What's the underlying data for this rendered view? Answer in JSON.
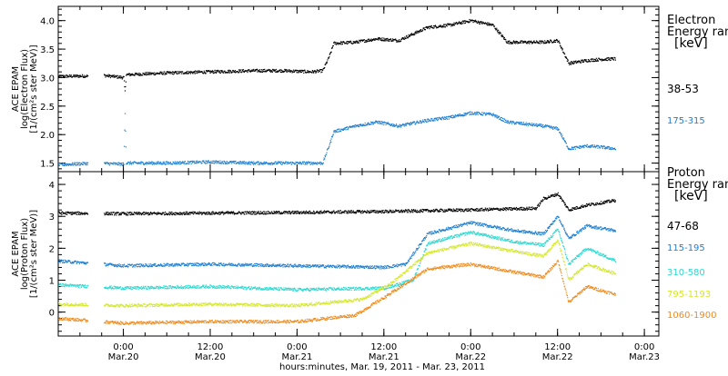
{
  "chart_data": [
    {
      "type": "scatter",
      "ylabel_lines": [
        "ACE EPAM",
        "log(Electron Flux)",
        "[1/(cm²s ster MeV)]"
      ],
      "xlim": [
        "2011-03-19T15:00",
        "2011-03-23T02:00"
      ],
      "ylim": [
        1.35,
        4.25
      ],
      "yticks": [
        1.5,
        2.0,
        2.5,
        3.0,
        3.5,
        4.0
      ],
      "ytick_labels": [
        "1.5",
        "2.0",
        "2.5",
        "3.0",
        "3.5",
        "4.0"
      ],
      "legend_title_lines": [
        "Electron",
        "Energy ranges",
        "[keV]"
      ],
      "grid": false,
      "legend_position": "right",
      "series": [
        {
          "name": "38-53",
          "color": "#000000",
          "points": [
            [
              "2011-03-19T15:00",
              3.02
            ],
            [
              "2011-03-19T20:00",
              3.03
            ],
            [
              "2011-03-19T21:00",
              3.04
            ],
            [
              "2011-03-20T00:00",
              3.0
            ],
            [
              "2011-03-20T00:10",
              2.75
            ],
            [
              "2011-03-20T00:20",
              3.05
            ],
            [
              "2011-03-20T06:00",
              3.08
            ],
            [
              "2011-03-20T12:00",
              3.1
            ],
            [
              "2011-03-20T18:00",
              3.12
            ],
            [
              "2011-03-20T22:00",
              3.12
            ],
            [
              "2011-03-21T02:00",
              3.1
            ],
            [
              "2011-03-21T03:30",
              3.12
            ],
            [
              "2011-03-21T04:30",
              3.4
            ],
            [
              "2011-03-21T05:00",
              3.6
            ],
            [
              "2011-03-21T08:00",
              3.62
            ],
            [
              "2011-03-21T11:00",
              3.68
            ],
            [
              "2011-03-21T14:00",
              3.65
            ],
            [
              "2011-03-21T18:00",
              3.88
            ],
            [
              "2011-03-21T21:00",
              3.92
            ],
            [
              "2011-03-22T00:00",
              4.0
            ],
            [
              "2011-03-22T03:00",
              3.92
            ],
            [
              "2011-03-22T05:00",
              3.62
            ],
            [
              "2011-03-22T10:00",
              3.62
            ],
            [
              "2011-03-22T12:00",
              3.65
            ],
            [
              "2011-03-22T13:30",
              3.25
            ],
            [
              "2011-03-22T16:00",
              3.3
            ],
            [
              "2011-03-22T18:00",
              3.32
            ],
            [
              "2011-03-22T20:00",
              3.33
            ]
          ]
        },
        {
          "name": "175-315",
          "color": "#1e7fd0",
          "points": [
            [
              "2011-03-19T15:00",
              1.47
            ],
            [
              "2011-03-19T20:00",
              1.5
            ],
            [
              "2011-03-20T00:00",
              1.48
            ],
            [
              "2011-03-20T00:10",
              2.38
            ],
            [
              "2011-03-20T00:20",
              1.5
            ],
            [
              "2011-03-20T06:00",
              1.5
            ],
            [
              "2011-03-20T12:00",
              1.52
            ],
            [
              "2011-03-20T18:00",
              1.5
            ],
            [
              "2011-03-20T22:00",
              1.5
            ],
            [
              "2011-03-21T02:00",
              1.5
            ],
            [
              "2011-03-21T03:30",
              1.5
            ],
            [
              "2011-03-21T04:30",
              1.85
            ],
            [
              "2011-03-21T05:00",
              2.05
            ],
            [
              "2011-03-21T08:00",
              2.15
            ],
            [
              "2011-03-21T11:00",
              2.22
            ],
            [
              "2011-03-21T14:00",
              2.15
            ],
            [
              "2011-03-21T18:00",
              2.25
            ],
            [
              "2011-03-21T21:00",
              2.3
            ],
            [
              "2011-03-22T00:00",
              2.38
            ],
            [
              "2011-03-22T03:00",
              2.35
            ],
            [
              "2011-03-22T05:00",
              2.22
            ],
            [
              "2011-03-22T10:00",
              2.15
            ],
            [
              "2011-03-22T12:00",
              2.1
            ],
            [
              "2011-03-22T13:30",
              1.75
            ],
            [
              "2011-03-22T16:00",
              1.8
            ],
            [
              "2011-03-22T18:00",
              1.78
            ],
            [
              "2011-03-22T20:00",
              1.75
            ]
          ]
        }
      ]
    },
    {
      "type": "scatter",
      "ylabel_lines": [
        "ACE EPAM",
        "log(Proton Flux)",
        "[1/(cm²s ster MeV)]"
      ],
      "xlim": [
        "2011-03-19T15:00",
        "2011-03-23T02:00"
      ],
      "ylim": [
        -0.75,
        4.4
      ],
      "yticks": [
        0,
        1,
        2,
        3,
        4
      ],
      "ytick_labels": [
        "0",
        "1",
        "2",
        "3",
        "4"
      ],
      "legend_title_lines": [
        "Proton",
        "Energy ranges",
        "[keV]"
      ],
      "xtick_times": [
        "2011-03-20T00:00",
        "2011-03-20T12:00",
        "2011-03-21T00:00",
        "2011-03-21T12:00",
        "2011-03-22T00:00",
        "2011-03-22T12:00",
        "2011-03-23T00:00"
      ],
      "xtick_labels": [
        [
          "0:00",
          "Mar.20"
        ],
        [
          "12:00",
          "Mar.20"
        ],
        [
          "0:00",
          "Mar.21"
        ],
        [
          "12:00",
          "Mar.21"
        ],
        [
          "0:00",
          "Mar.22"
        ],
        [
          "12:00",
          "Mar.22"
        ],
        [
          "0:00",
          "Mar.23"
        ]
      ],
      "xlabel": "hours:minutes, Mar. 19, 2011 - Mar. 23, 2011",
      "grid": false,
      "legend_position": "right",
      "series": [
        {
          "name": "47-68",
          "color": "#000000",
          "points": [
            [
              "2011-03-19T15:00",
              3.1
            ],
            [
              "2011-03-20T00:00",
              3.08
            ],
            [
              "2011-03-20T12:00",
              3.1
            ],
            [
              "2011-03-21T00:00",
              3.12
            ],
            [
              "2011-03-21T12:00",
              3.15
            ],
            [
              "2011-03-22T00:00",
              3.2
            ],
            [
              "2011-03-22T09:00",
              3.25
            ],
            [
              "2011-03-22T10:00",
              3.55
            ],
            [
              "2011-03-22T12:00",
              3.7
            ],
            [
              "2011-03-22T13:30",
              3.2
            ],
            [
              "2011-03-22T16:00",
              3.35
            ],
            [
              "2011-03-22T20:00",
              3.5
            ]
          ]
        },
        {
          "name": "115-195",
          "color": "#1e7fd0",
          "points": [
            [
              "2011-03-19T15:00",
              1.6
            ],
            [
              "2011-03-20T00:00",
              1.45
            ],
            [
              "2011-03-20T12:00",
              1.5
            ],
            [
              "2011-03-21T00:00",
              1.45
            ],
            [
              "2011-03-21T12:00",
              1.4
            ],
            [
              "2011-03-21T15:00",
              1.5
            ],
            [
              "2011-03-21T18:00",
              2.45
            ],
            [
              "2011-03-22T00:00",
              2.8
            ],
            [
              "2011-03-22T06:00",
              2.55
            ],
            [
              "2011-03-22T10:00",
              2.45
            ],
            [
              "2011-03-22T12:00",
              3.0
            ],
            [
              "2011-03-22T13:30",
              2.3
            ],
            [
              "2011-03-22T16:00",
              2.7
            ],
            [
              "2011-03-22T20:00",
              2.55
            ]
          ]
        },
        {
          "name": "310-580",
          "color": "#2cd8cf",
          "points": [
            [
              "2011-03-19T15:00",
              0.85
            ],
            [
              "2011-03-20T00:00",
              0.75
            ],
            [
              "2011-03-20T12:00",
              0.8
            ],
            [
              "2011-03-21T00:00",
              0.7
            ],
            [
              "2011-03-21T12:00",
              0.75
            ],
            [
              "2011-03-21T16:00",
              1.0
            ],
            [
              "2011-03-21T18:00",
              2.15
            ],
            [
              "2011-03-22T00:00",
              2.5
            ],
            [
              "2011-03-22T06:00",
              2.2
            ],
            [
              "2011-03-22T10:00",
              2.1
            ],
            [
              "2011-03-22T12:00",
              2.6
            ],
            [
              "2011-03-22T13:30",
              1.5
            ],
            [
              "2011-03-22T16:00",
              2.0
            ],
            [
              "2011-03-22T20:00",
              1.6
            ]
          ]
        },
        {
          "name": "795-1193",
          "color": "#d4e82a",
          "points": [
            [
              "2011-03-19T15:00",
              0.25
            ],
            [
              "2011-03-20T00:00",
              0.2
            ],
            [
              "2011-03-20T12:00",
              0.25
            ],
            [
              "2011-03-21T00:00",
              0.2
            ],
            [
              "2011-03-21T09:00",
              0.4
            ],
            [
              "2011-03-21T13:00",
              0.9
            ],
            [
              "2011-03-21T18:00",
              1.85
            ],
            [
              "2011-03-22T00:00",
              2.15
            ],
            [
              "2011-03-22T06:00",
              1.9
            ],
            [
              "2011-03-22T10:00",
              1.75
            ],
            [
              "2011-03-22T12:00",
              2.25
            ],
            [
              "2011-03-22T13:30",
              1.0
            ],
            [
              "2011-03-22T16:00",
              1.5
            ],
            [
              "2011-03-22T20:00",
              1.2
            ]
          ]
        },
        {
          "name": "1060-1900",
          "color": "#f08a1c",
          "points": [
            [
              "2011-03-19T15:00",
              -0.2
            ],
            [
              "2011-03-20T00:00",
              -0.35
            ],
            [
              "2011-03-20T12:00",
              -0.3
            ],
            [
              "2011-03-21T00:00",
              -0.3
            ],
            [
              "2011-03-21T08:00",
              -0.1
            ],
            [
              "2011-03-21T13:00",
              0.6
            ],
            [
              "2011-03-21T18:00",
              1.35
            ],
            [
              "2011-03-22T00:00",
              1.5
            ],
            [
              "2011-03-22T06:00",
              1.25
            ],
            [
              "2011-03-22T10:00",
              1.1
            ],
            [
              "2011-03-22T12:00",
              1.6
            ],
            [
              "2011-03-22T13:30",
              0.3
            ],
            [
              "2011-03-22T16:00",
              0.8
            ],
            [
              "2011-03-22T20:00",
              0.55
            ]
          ]
        }
      ]
    }
  ]
}
